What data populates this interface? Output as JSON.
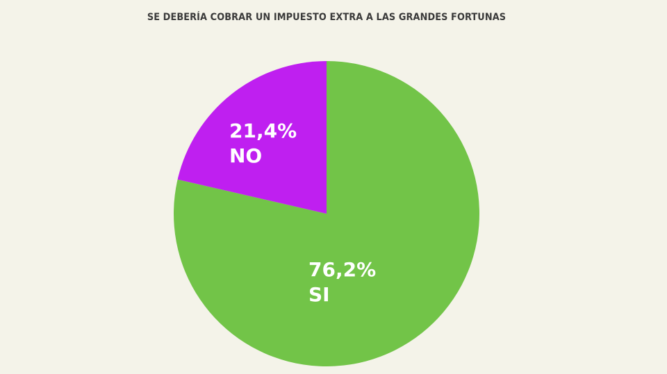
{
  "chart_data": {
    "type": "pie",
    "title": "SE DEBERÍA COBRAR UN IMPUESTO EXTRA A LAS GRANDES FORTUNAS",
    "slices": [
      {
        "label": "SI",
        "value": 76.2,
        "value_label": "76,2%",
        "color": "#72c448"
      },
      {
        "label": "NO",
        "value": 21.4,
        "value_label": "21,4%",
        "color": "#bf1ff0"
      }
    ]
  }
}
